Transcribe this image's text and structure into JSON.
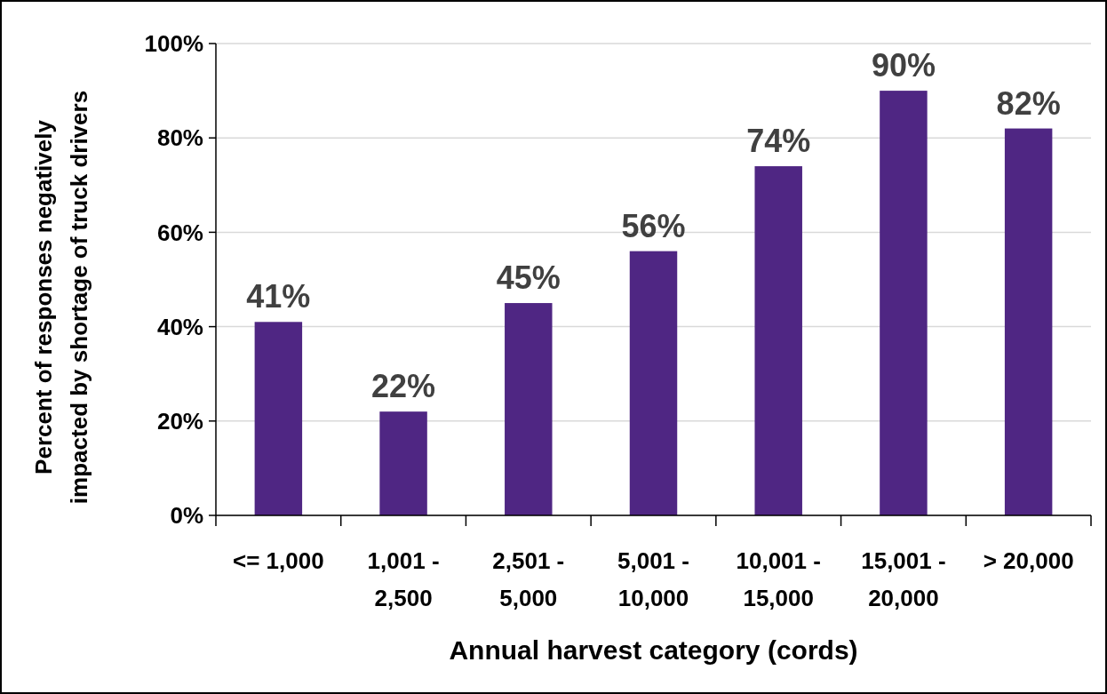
{
  "chart_data": {
    "type": "bar",
    "xlabel": "Annual harvest category (cords)",
    "ylabel": "Percent of responses negatively impacted by shortage of truck drivers",
    "categories": [
      "<= 1,000",
      "1,001 - 2,500",
      "2,501 - 5,000",
      "5,001 - 10,000",
      "10,001 - 15,000",
      "15,001 - 20,000",
      "> 20,000"
    ],
    "values": [
      41,
      22,
      45,
      56,
      74,
      90,
      82
    ],
    "color": "#4f2683",
    "value_labels": [
      "41%",
      "22%",
      "45%",
      "56%",
      "74%",
      "90%",
      "82%"
    ],
    "ylim": [
      0,
      100
    ],
    "yticks": [
      {
        "value": 0,
        "label": "0%"
      },
      {
        "value": 20,
        "label": "20%"
      },
      {
        "value": 40,
        "label": "40%"
      },
      {
        "value": 60,
        "label": "60%"
      },
      {
        "value": 80,
        "label": "80%"
      },
      {
        "value": 100,
        "label": "100%"
      }
    ],
    "grid": "y"
  }
}
